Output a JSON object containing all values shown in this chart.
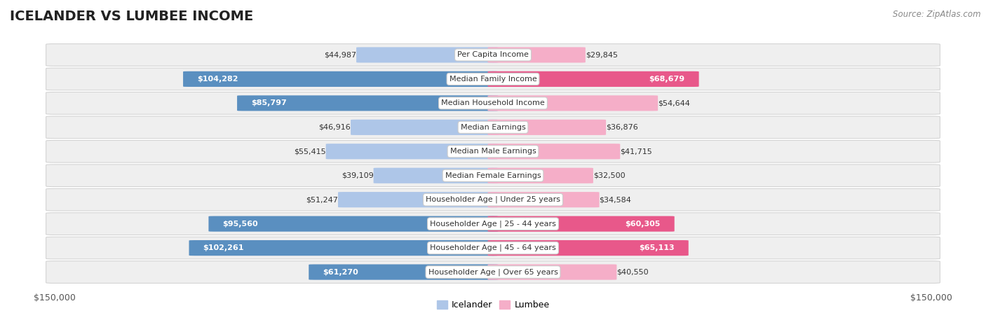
{
  "title": "ICELANDER VS LUMBEE INCOME",
  "source": "Source: ZipAtlas.com",
  "max_value": 150000,
  "categories": [
    "Per Capita Income",
    "Median Family Income",
    "Median Household Income",
    "Median Earnings",
    "Median Male Earnings",
    "Median Female Earnings",
    "Householder Age | Under 25 years",
    "Householder Age | 25 - 44 years",
    "Householder Age | 45 - 64 years",
    "Householder Age | Over 65 years"
  ],
  "icelander_values": [
    44987,
    104282,
    85797,
    46916,
    55415,
    39109,
    51247,
    95560,
    102261,
    61270
  ],
  "lumbee_values": [
    29845,
    68679,
    54644,
    36876,
    41715,
    32500,
    34584,
    60305,
    65113,
    40550
  ],
  "icelander_color_light": "#aec6e8",
  "icelander_color_dark": "#5a8fc0",
  "lumbee_color_light": "#f5aec8",
  "lumbee_color_dark": "#e8588a",
  "bar_height": 0.62,
  "bg_color": "#ffffff",
  "row_bg_color": "#efefef",
  "row_border_color": "#d0d0d0",
  "label_bg": "#ffffff",
  "xlabel_left": "$150,000",
  "xlabel_right": "$150,000",
  "legend_icelander": "Icelander",
  "legend_lumbee": "Lumbee",
  "large_threshold": 60000
}
